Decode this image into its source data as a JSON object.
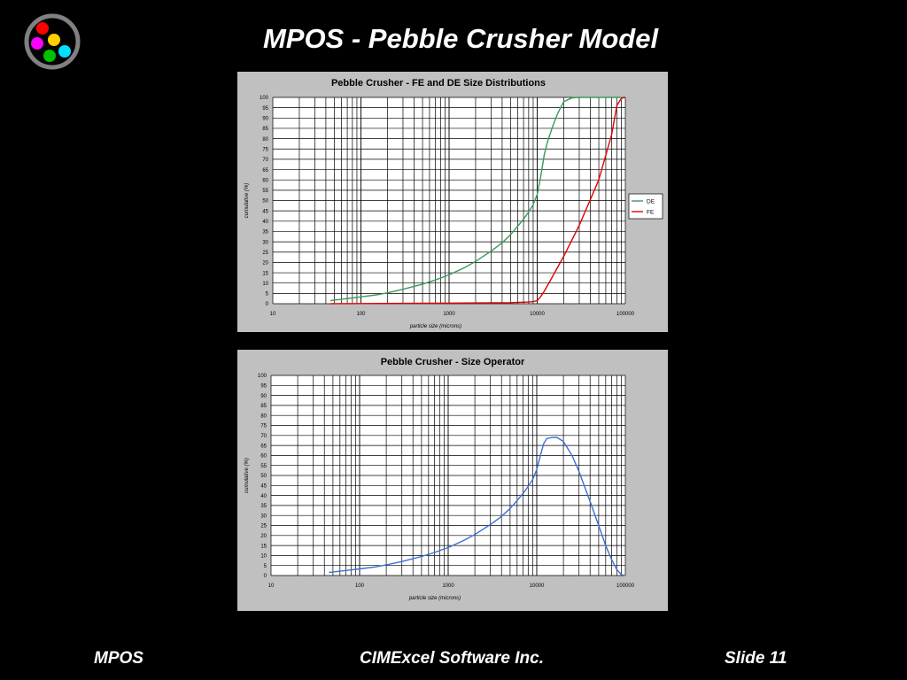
{
  "slide": {
    "title": "MPOS - Pebble Crusher Model",
    "footer_left": "MPOS",
    "footer_center": "CIMExcel Software Inc.",
    "footer_right": "Slide 11"
  },
  "logo": {
    "ring_color": "#808080",
    "dots": [
      "#ff0000",
      "#ffd000",
      "#ff00ff",
      "#00e0ff",
      "#00c000"
    ]
  },
  "chart_data": [
    {
      "type": "line",
      "title": "Pebble Crusher - FE and DE Size Distributions",
      "xlabel": "particle size  (microns)",
      "ylabel": "cumulative (%)",
      "xscale": "log",
      "xlim": [
        10,
        100000
      ],
      "ylim": [
        0,
        100
      ],
      "x_ticks": [
        "10",
        "100",
        "1000",
        "10000",
        "100000"
      ],
      "y_ticks": [
        "0",
        "5",
        "10",
        "15",
        "20",
        "25",
        "30",
        "35",
        "40",
        "45",
        "50",
        "55",
        "60",
        "65",
        "70",
        "75",
        "80",
        "85",
        "90",
        "95",
        "100"
      ],
      "grid": true,
      "legend": "right",
      "series": [
        {
          "name": "DE",
          "color": "#3a9a5a",
          "x": [
            45,
            70,
            100,
            150,
            200,
            300,
            500,
            700,
            1000,
            1500,
            2000,
            3000,
            4000,
            5000,
            6000,
            7000,
            8000,
            9000,
            10000,
            11000,
            12000,
            13000,
            15000,
            17000,
            20000,
            25000,
            30000,
            50000,
            100000
          ],
          "y": [
            1.5,
            2.5,
            3.3,
            4.3,
            5.3,
            7,
            9.5,
            11.5,
            14,
            17.5,
            20.5,
            25.5,
            29.5,
            33.5,
            37.5,
            41,
            44.5,
            48,
            53,
            62,
            72,
            78,
            86,
            92,
            98,
            99.8,
            100,
            100,
            100
          ]
        },
        {
          "name": "FE",
          "color": "#e00000",
          "x": [
            45,
            100,
            1000,
            5000,
            8000,
            9000,
            10000,
            11000,
            12000,
            14000,
            20000,
            30000,
            50000,
            70000,
            80000,
            90000,
            100000
          ],
          "y": [
            0,
            0.1,
            0.3,
            0.5,
            0.8,
            1,
            1.5,
            3.5,
            6,
            11,
            23,
            38,
            60,
            82,
            96,
            99.5,
            100
          ]
        }
      ]
    },
    {
      "type": "line",
      "title": "Pebble Crusher - Size Operator",
      "xlabel": "particle size  (microns)",
      "ylabel": "cumulative (%)",
      "xscale": "log",
      "xlim": [
        10,
        100000
      ],
      "ylim": [
        0,
        100
      ],
      "x_ticks": [
        "10",
        "100",
        "1000",
        "10000",
        "100000"
      ],
      "y_ticks": [
        "0",
        "5",
        "10",
        "15",
        "20",
        "25",
        "30",
        "35",
        "40",
        "45",
        "50",
        "55",
        "60",
        "65",
        "70",
        "75",
        "80",
        "85",
        "90",
        "95",
        "100"
      ],
      "grid": true,
      "legend": "none",
      "series": [
        {
          "color": "#3b6fd4",
          "x": [
            45,
            70,
            100,
            150,
            200,
            300,
            500,
            700,
            1000,
            1500,
            2000,
            3000,
            4000,
            5000,
            6000,
            7000,
            8000,
            9000,
            10000,
            11000,
            12000,
            13000,
            15000,
            17000,
            20000,
            25000,
            30000,
            40000,
            50000,
            60000,
            70000,
            80000,
            90000,
            100000
          ],
          "y": [
            1.5,
            2.5,
            3.3,
            4.3,
            5.3,
            7,
            9.5,
            11.5,
            14,
            17.5,
            20.5,
            25.5,
            29.5,
            33.5,
            37.5,
            41,
            44.5,
            48,
            53,
            60,
            66,
            68.5,
            69,
            69,
            67,
            60,
            52,
            37,
            25,
            15,
            8,
            3,
            0.5,
            0
          ]
        }
      ]
    }
  ]
}
